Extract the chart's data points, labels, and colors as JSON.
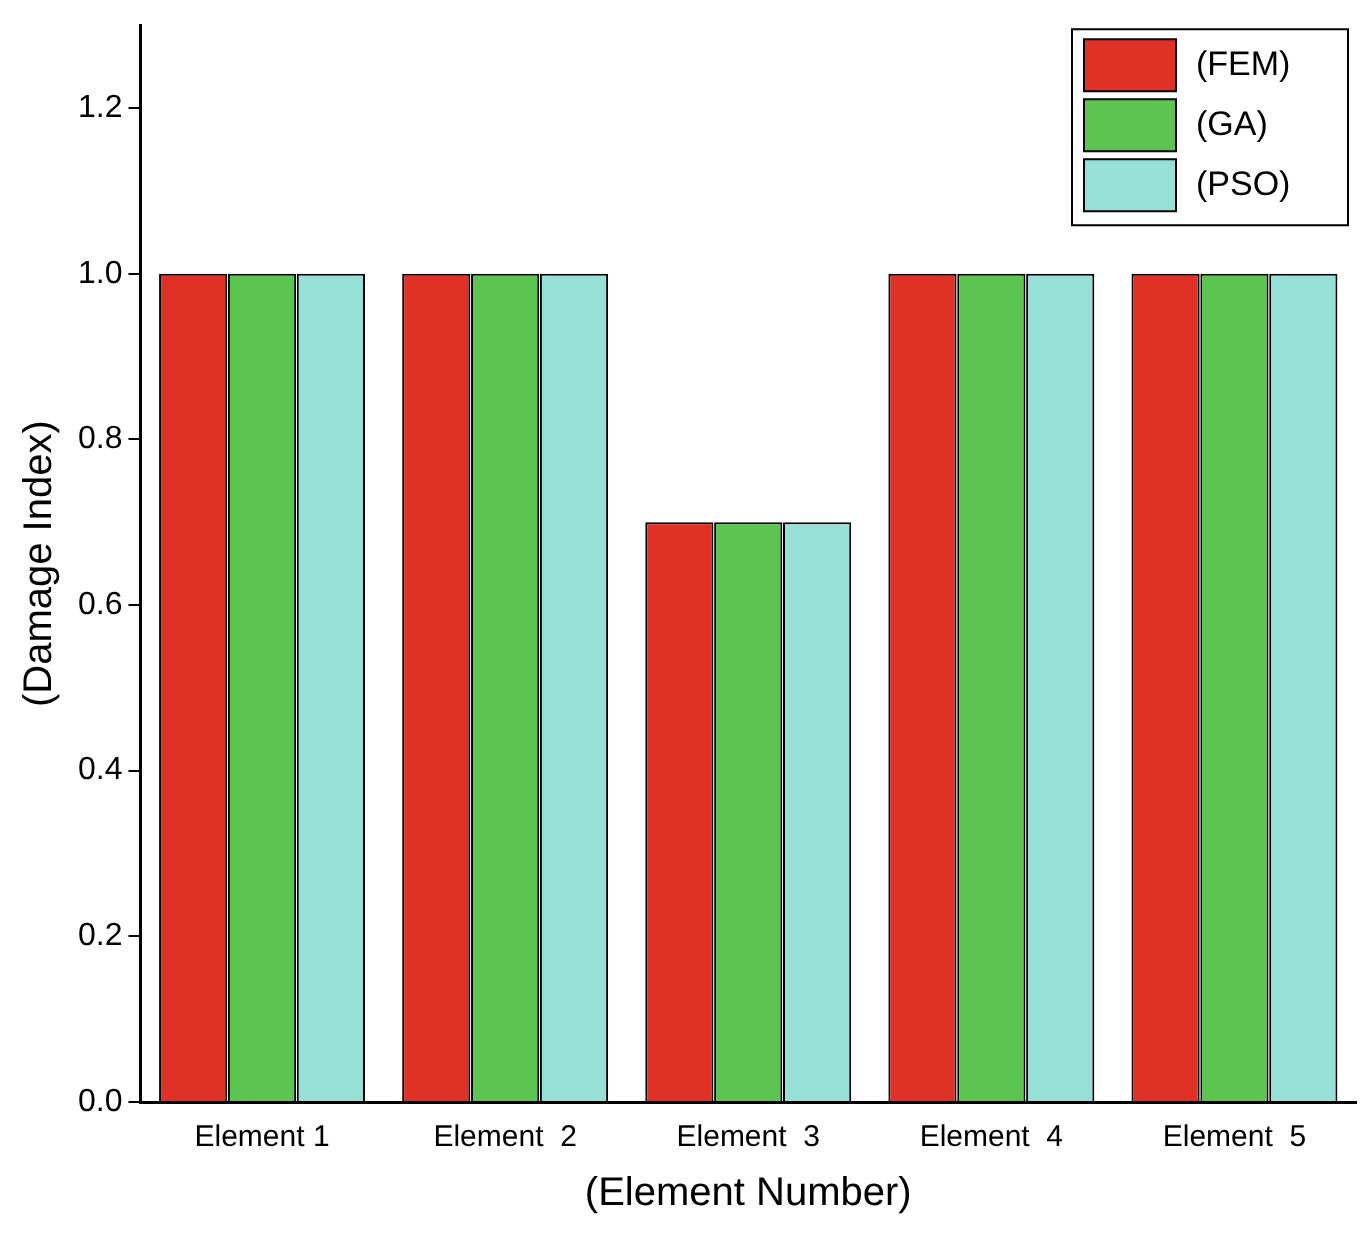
{
  "chart_data": {
    "type": "bar",
    "xlabel": "(Element Number)",
    "ylabel": "(Damage Index)",
    "categories": [
      "Element 1",
      "Element  2",
      "Element  3",
      "Element  4",
      "Element  5"
    ],
    "series": [
      {
        "name": "(FEM)",
        "color": "#e03127",
        "values": [
          1.0,
          1.0,
          0.7,
          1.0,
          1.0
        ]
      },
      {
        "name": "(GA)",
        "color": "#5cc552",
        "values": [
          1.0,
          1.0,
          0.7,
          1.0,
          1.0
        ]
      },
      {
        "name": "(PSO)",
        "color": "#96e0d8",
        "values": [
          1.0,
          1.0,
          0.7,
          1.0,
          1.0
        ]
      }
    ],
    "ylim": [
      0,
      1.3
    ],
    "yticks": [
      {
        "value": 0,
        "label": "0.0"
      },
      0.2,
      0.4,
      0.6,
      0.8,
      {
        "value": 1,
        "label": "1.0"
      },
      1.2
    ],
    "grid": false,
    "legend": "top right"
  }
}
